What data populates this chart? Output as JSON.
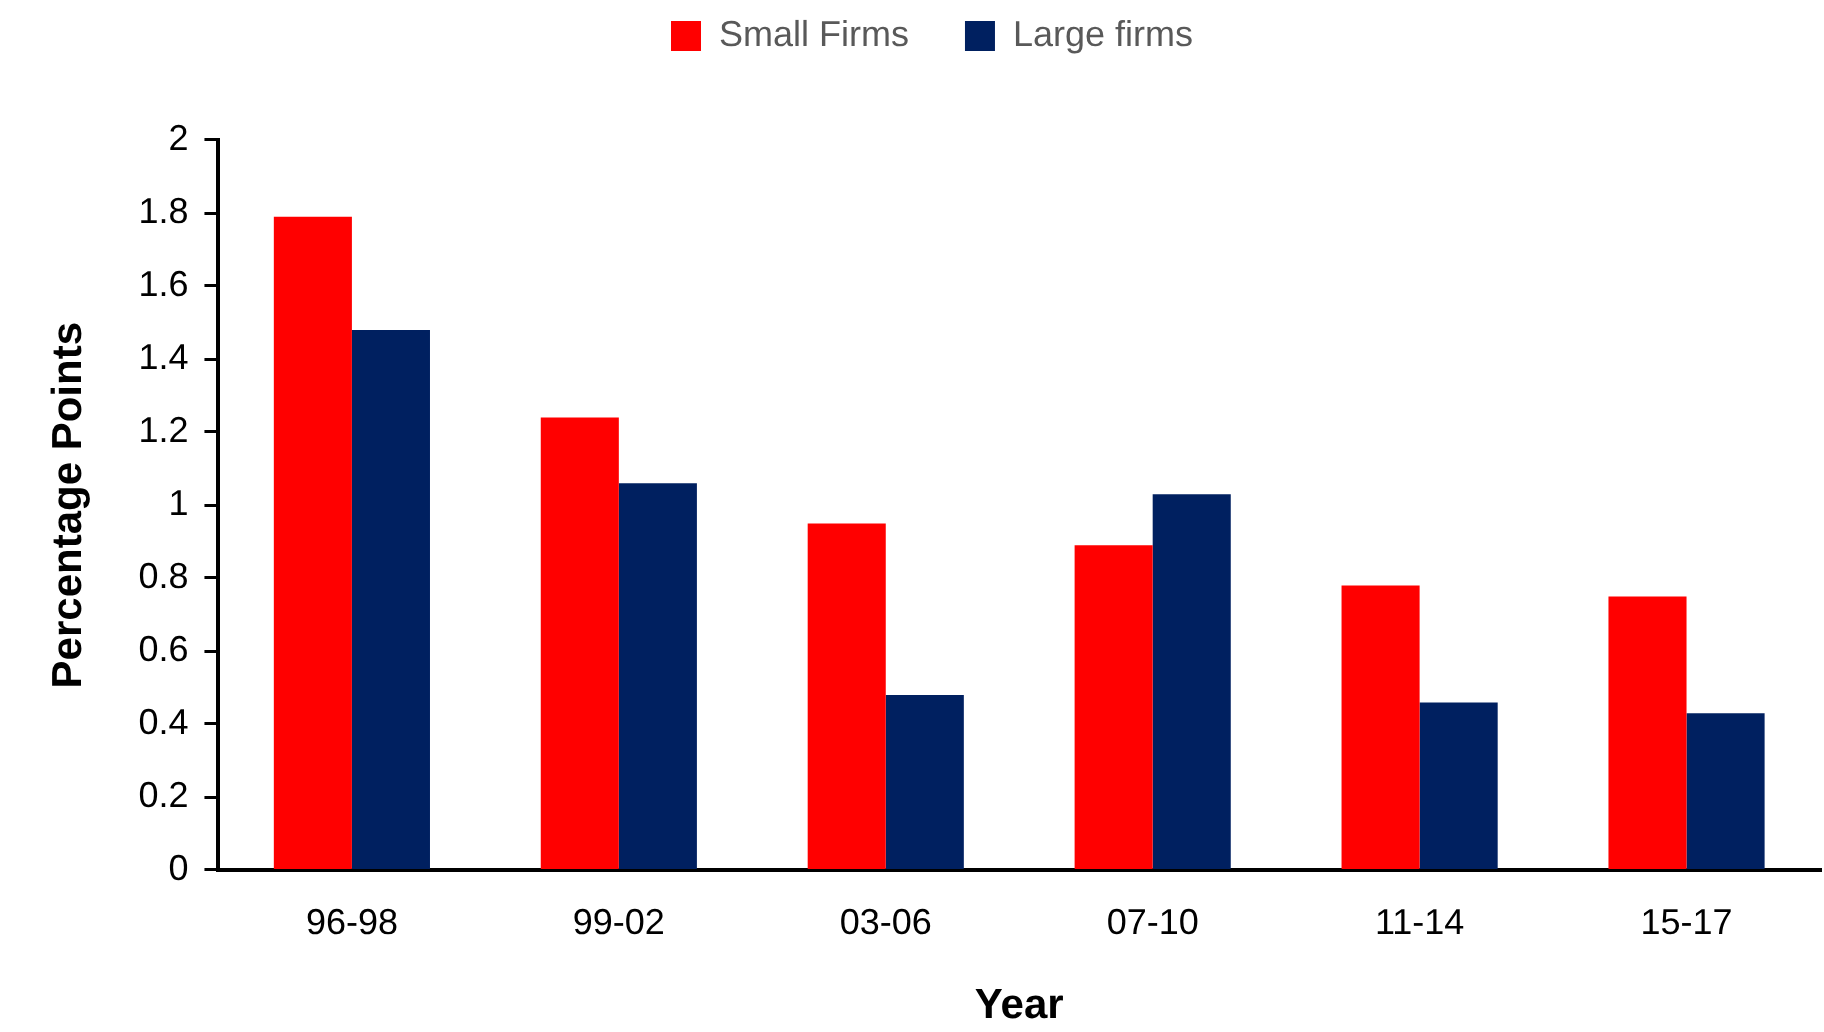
{
  "chart_data": {
    "type": "bar",
    "xlabel": "Year",
    "ylabel": "Percentage Points",
    "categories": [
      "96-98",
      "99-02",
      "03-06",
      "07-10",
      "11-14",
      "15-17"
    ],
    "series": [
      {
        "name": "Small Firms",
        "color": "#ff0000",
        "values": [
          1.79,
          1.24,
          0.95,
          0.89,
          0.78,
          0.75
        ]
      },
      {
        "name": "Large firms",
        "color": "#002060",
        "values": [
          1.48,
          1.06,
          0.48,
          1.03,
          0.46,
          0.43
        ]
      }
    ],
    "ylim": [
      0,
      2
    ],
    "yticks": [
      0,
      0.2,
      0.4,
      0.6,
      0.8,
      1,
      1.2,
      1.4,
      1.6,
      1.8,
      2
    ],
    "grid": false,
    "legend": "top"
  }
}
